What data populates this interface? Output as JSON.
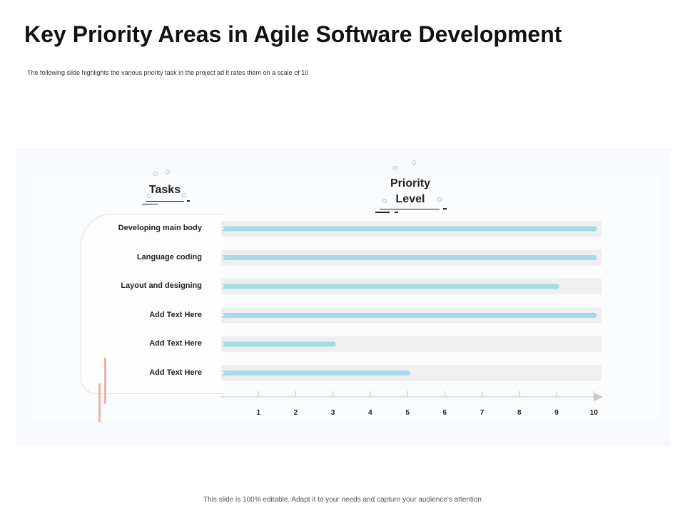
{
  "slide": {
    "title": "Key Priority Areas in Agile Software Development",
    "subtitle": "The following slide highlights the various priority task in the project ad it rates them on a scale of 10",
    "footer": "This slide is 100% editable. Adapt it to your needs and capture your audience's attention"
  },
  "chart_data": {
    "type": "bar",
    "orientation": "horizontal",
    "tasks_header": "Tasks",
    "priority_header": "Priority Level",
    "categories": [
      "Developing main body",
      "Language coding",
      "Layout and designing",
      "Add Text Here",
      "Add Text Here",
      "Add Text Here"
    ],
    "values": [
      10,
      10,
      9,
      10,
      3,
      5
    ],
    "ticks": [
      1,
      2,
      3,
      4,
      5,
      6,
      7,
      8,
      9,
      10
    ],
    "xlim": [
      0,
      10
    ],
    "bar_color": "#a6dbe5",
    "track_color": "#efefef"
  }
}
